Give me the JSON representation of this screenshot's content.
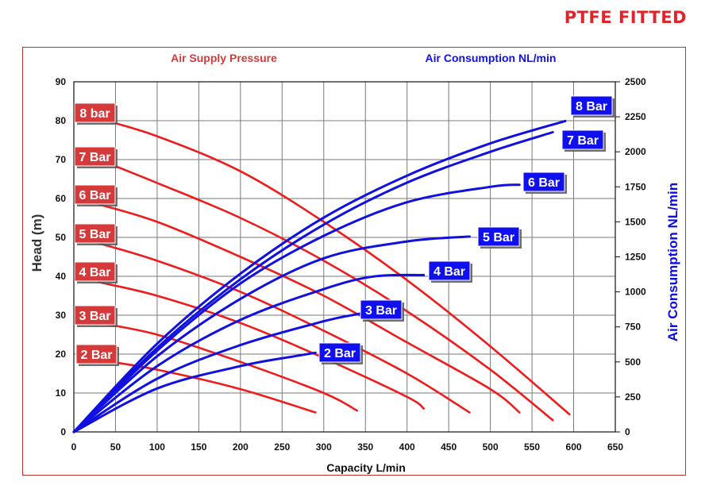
{
  "page": {
    "badge": "PTFE FITTED"
  },
  "chart_data": {
    "type": "line",
    "legend_left": "Air Supply Pressure",
    "legend_right": "Air Consumption NL/min",
    "xlabel": "Capacity L/min",
    "ylabel": "Head (m)",
    "y2label": "Air Consumption NL/min",
    "xlim": [
      0,
      650
    ],
    "ylim": [
      0,
      90
    ],
    "y2lim": [
      0,
      2500
    ],
    "xticks": [
      "0",
      "50",
      "100",
      "150",
      "200",
      "250",
      "300",
      "350",
      "400",
      "450",
      "500",
      "550",
      "600",
      "650"
    ],
    "yticks": [
      "0",
      "10",
      "20",
      "30",
      "40",
      "50",
      "60",
      "70",
      "80",
      "90"
    ],
    "y2ticks": [
      "0",
      "250",
      "500",
      "750",
      "1000",
      "1250",
      "1500",
      "1750",
      "2000",
      "2250",
      "2500"
    ],
    "grid": true,
    "colors": {
      "head": "#ee1c1c",
      "air": "#1010e0",
      "head_label": "#d6393a",
      "air_label": "#0f0ff0",
      "axis_left": "#333333",
      "axis_right": "#0c0cdd"
    },
    "head_series": [
      {
        "name": "8 bar",
        "points": [
          [
            30,
            80.5
          ],
          [
            100,
            76
          ],
          [
            200,
            67
          ],
          [
            300,
            54
          ],
          [
            400,
            39
          ],
          [
            500,
            22
          ],
          [
            595,
            4.5
          ]
        ]
      },
      {
        "name": "7 Bar",
        "points": [
          [
            30,
            70
          ],
          [
            100,
            64
          ],
          [
            200,
            55
          ],
          [
            300,
            44
          ],
          [
            400,
            31
          ],
          [
            500,
            16
          ],
          [
            575,
            3
          ]
        ]
      },
      {
        "name": "6 Bar",
        "points": [
          [
            30,
            58.5
          ],
          [
            100,
            54
          ],
          [
            200,
            45
          ],
          [
            300,
            35
          ],
          [
            400,
            23
          ],
          [
            500,
            11
          ],
          [
            535,
            5
          ]
        ]
      },
      {
        "name": "5 Bar",
        "points": [
          [
            30,
            48.5
          ],
          [
            100,
            44
          ],
          [
            200,
            36
          ],
          [
            300,
            26
          ],
          [
            400,
            15
          ],
          [
            475,
            5
          ]
        ]
      },
      {
        "name": "4 Bar",
        "points": [
          [
            30,
            38.5
          ],
          [
            100,
            35
          ],
          [
            200,
            28
          ],
          [
            300,
            19
          ],
          [
            400,
            9
          ],
          [
            420,
            6
          ]
        ]
      },
      {
        "name": "3 Bar",
        "points": [
          [
            30,
            28
          ],
          [
            100,
            25
          ],
          [
            200,
            18
          ],
          [
            300,
            10
          ],
          [
            340,
            5.5
          ]
        ]
      },
      {
        "name": "2 Bar",
        "points": [
          [
            30,
            18.5
          ],
          [
            100,
            16
          ],
          [
            200,
            11
          ],
          [
            290,
            5
          ]
        ]
      }
    ],
    "air_series": [
      {
        "name": "8 Bar",
        "points": [
          [
            0,
            0
          ],
          [
            100,
            630
          ],
          [
            200,
            1130
          ],
          [
            300,
            1530
          ],
          [
            400,
            1830
          ],
          [
            500,
            2060
          ],
          [
            590,
            2220
          ]
        ]
      },
      {
        "name": "7 Bar",
        "points": [
          [
            0,
            0
          ],
          [
            100,
            600
          ],
          [
            200,
            1090
          ],
          [
            300,
            1480
          ],
          [
            400,
            1780
          ],
          [
            500,
            2000
          ],
          [
            575,
            2140
          ]
        ]
      },
      {
        "name": "6 Bar",
        "points": [
          [
            0,
            0
          ],
          [
            100,
            580
          ],
          [
            200,
            1060
          ],
          [
            300,
            1400
          ],
          [
            400,
            1640
          ],
          [
            500,
            1750
          ],
          [
            535,
            1765
          ]
        ]
      },
      {
        "name": "5 Bar",
        "points": [
          [
            0,
            0
          ],
          [
            100,
            540
          ],
          [
            200,
            950
          ],
          [
            300,
            1240
          ],
          [
            400,
            1360
          ],
          [
            475,
            1395
          ]
        ]
      },
      {
        "name": "4 Bar",
        "points": [
          [
            0,
            0
          ],
          [
            100,
            470
          ],
          [
            200,
            800
          ],
          [
            300,
            1020
          ],
          [
            360,
            1110
          ],
          [
            420,
            1120
          ]
        ]
      },
      {
        "name": "3 Bar",
        "points": [
          [
            0,
            0
          ],
          [
            100,
            380
          ],
          [
            200,
            620
          ],
          [
            300,
            790
          ],
          [
            340,
            840
          ],
          [
            360,
            860
          ]
        ]
      },
      {
        "name": "2 Bar",
        "points": [
          [
            0,
            0
          ],
          [
            100,
            310
          ],
          [
            200,
            470
          ],
          [
            265,
            540
          ],
          [
            290,
            565
          ]
        ]
      }
    ],
    "head_labels": [
      "8 bar",
      "7 Bar",
      "6 Bar",
      "5 Bar",
      "4 Bar",
      "3 Bar",
      "2 Bar"
    ],
    "air_labels": [
      "8 Bar",
      "7 Bar",
      "6 Bar",
      "5 Bar",
      "4 Bar",
      "3 Bar",
      "2 Bar"
    ]
  }
}
